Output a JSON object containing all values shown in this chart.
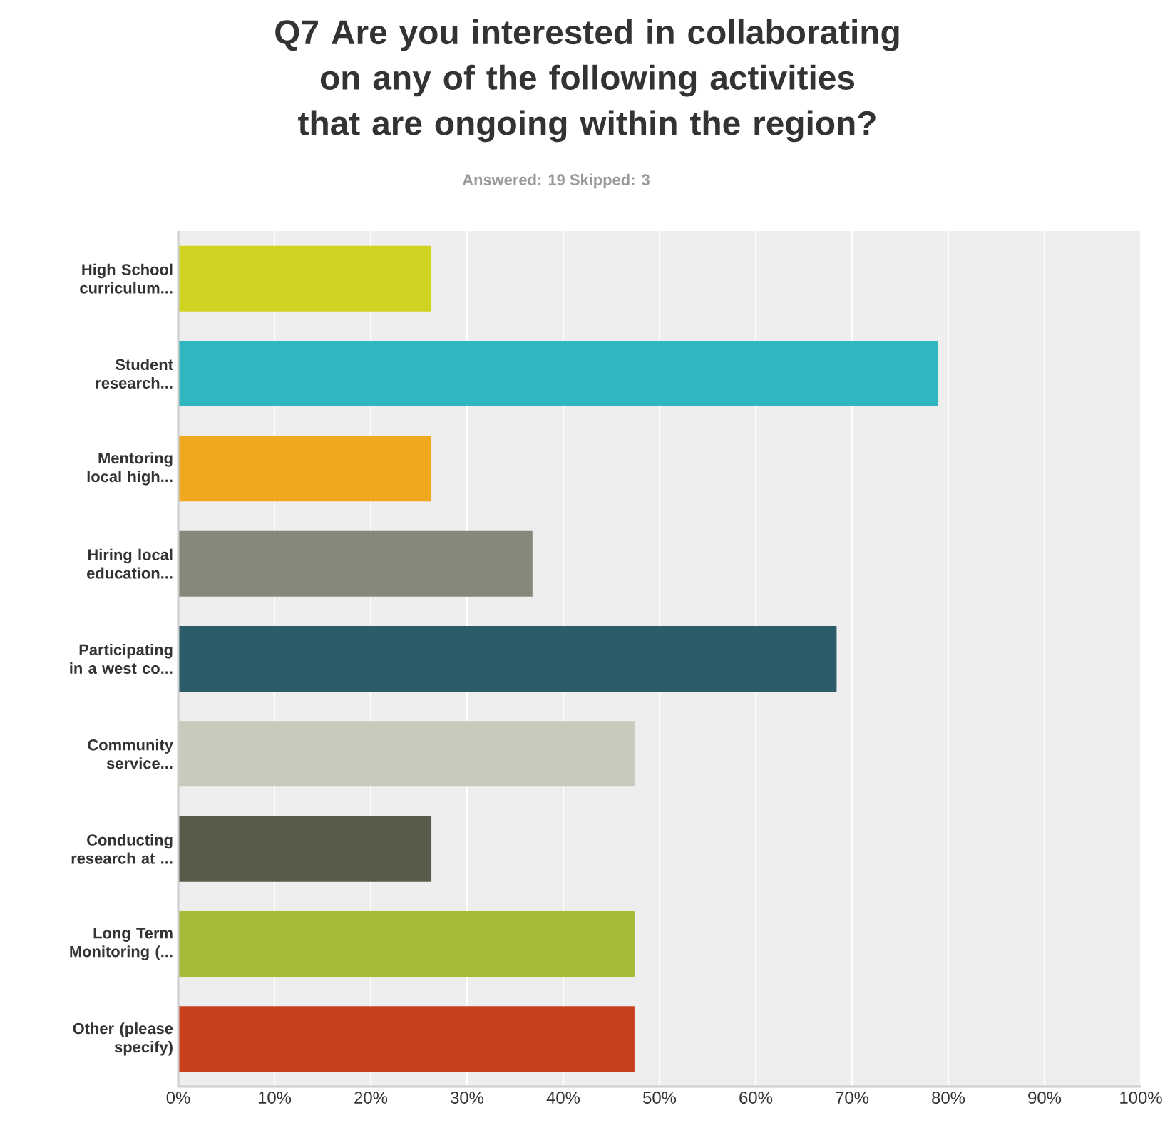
{
  "chart_data": {
    "type": "bar",
    "orientation": "horizontal",
    "title": "Q7 Are you interested in collaborating on any of the following activities that are ongoing within the region?",
    "subtitle": "Answered: 19    Skipped: 3",
    "categories": [
      "High School curriculum...",
      "Student research...",
      "Mentoring local high...",
      "Hiring local education...",
      "Participating in a west co...",
      "Community service...",
      "Conducting research at ...",
      "Long Term Monitoring (...",
      "Other (please specify)"
    ],
    "values": [
      26.3,
      78.9,
      26.3,
      36.8,
      68.4,
      47.4,
      26.3,
      47.4,
      47.4
    ],
    "colors": [
      "#d0d321",
      "#30b6be",
      "#f0a91e",
      "#87877a",
      "#2c5c68",
      "#c9cabc",
      "#5a5a4a",
      "#a3bb37",
      "#c7411c"
    ],
    "xlim": [
      0,
      100
    ],
    "xticks": [
      {
        "value": 0,
        "label": "0%"
      },
      {
        "value": 10,
        "label": "10%"
      },
      {
        "value": 20,
        "label": "20%"
      },
      {
        "value": 30,
        "label": "30%"
      },
      {
        "value": 40,
        "label": "40%"
      },
      {
        "value": 50,
        "label": "50%"
      },
      {
        "value": 60,
        "label": "60%"
      },
      {
        "value": 70,
        "label": "70%"
      },
      {
        "value": 80,
        "label": "80%"
      },
      {
        "value": 90,
        "label": "90%"
      },
      {
        "value": 100,
        "label": "100%"
      }
    ],
    "grid": "x"
  }
}
